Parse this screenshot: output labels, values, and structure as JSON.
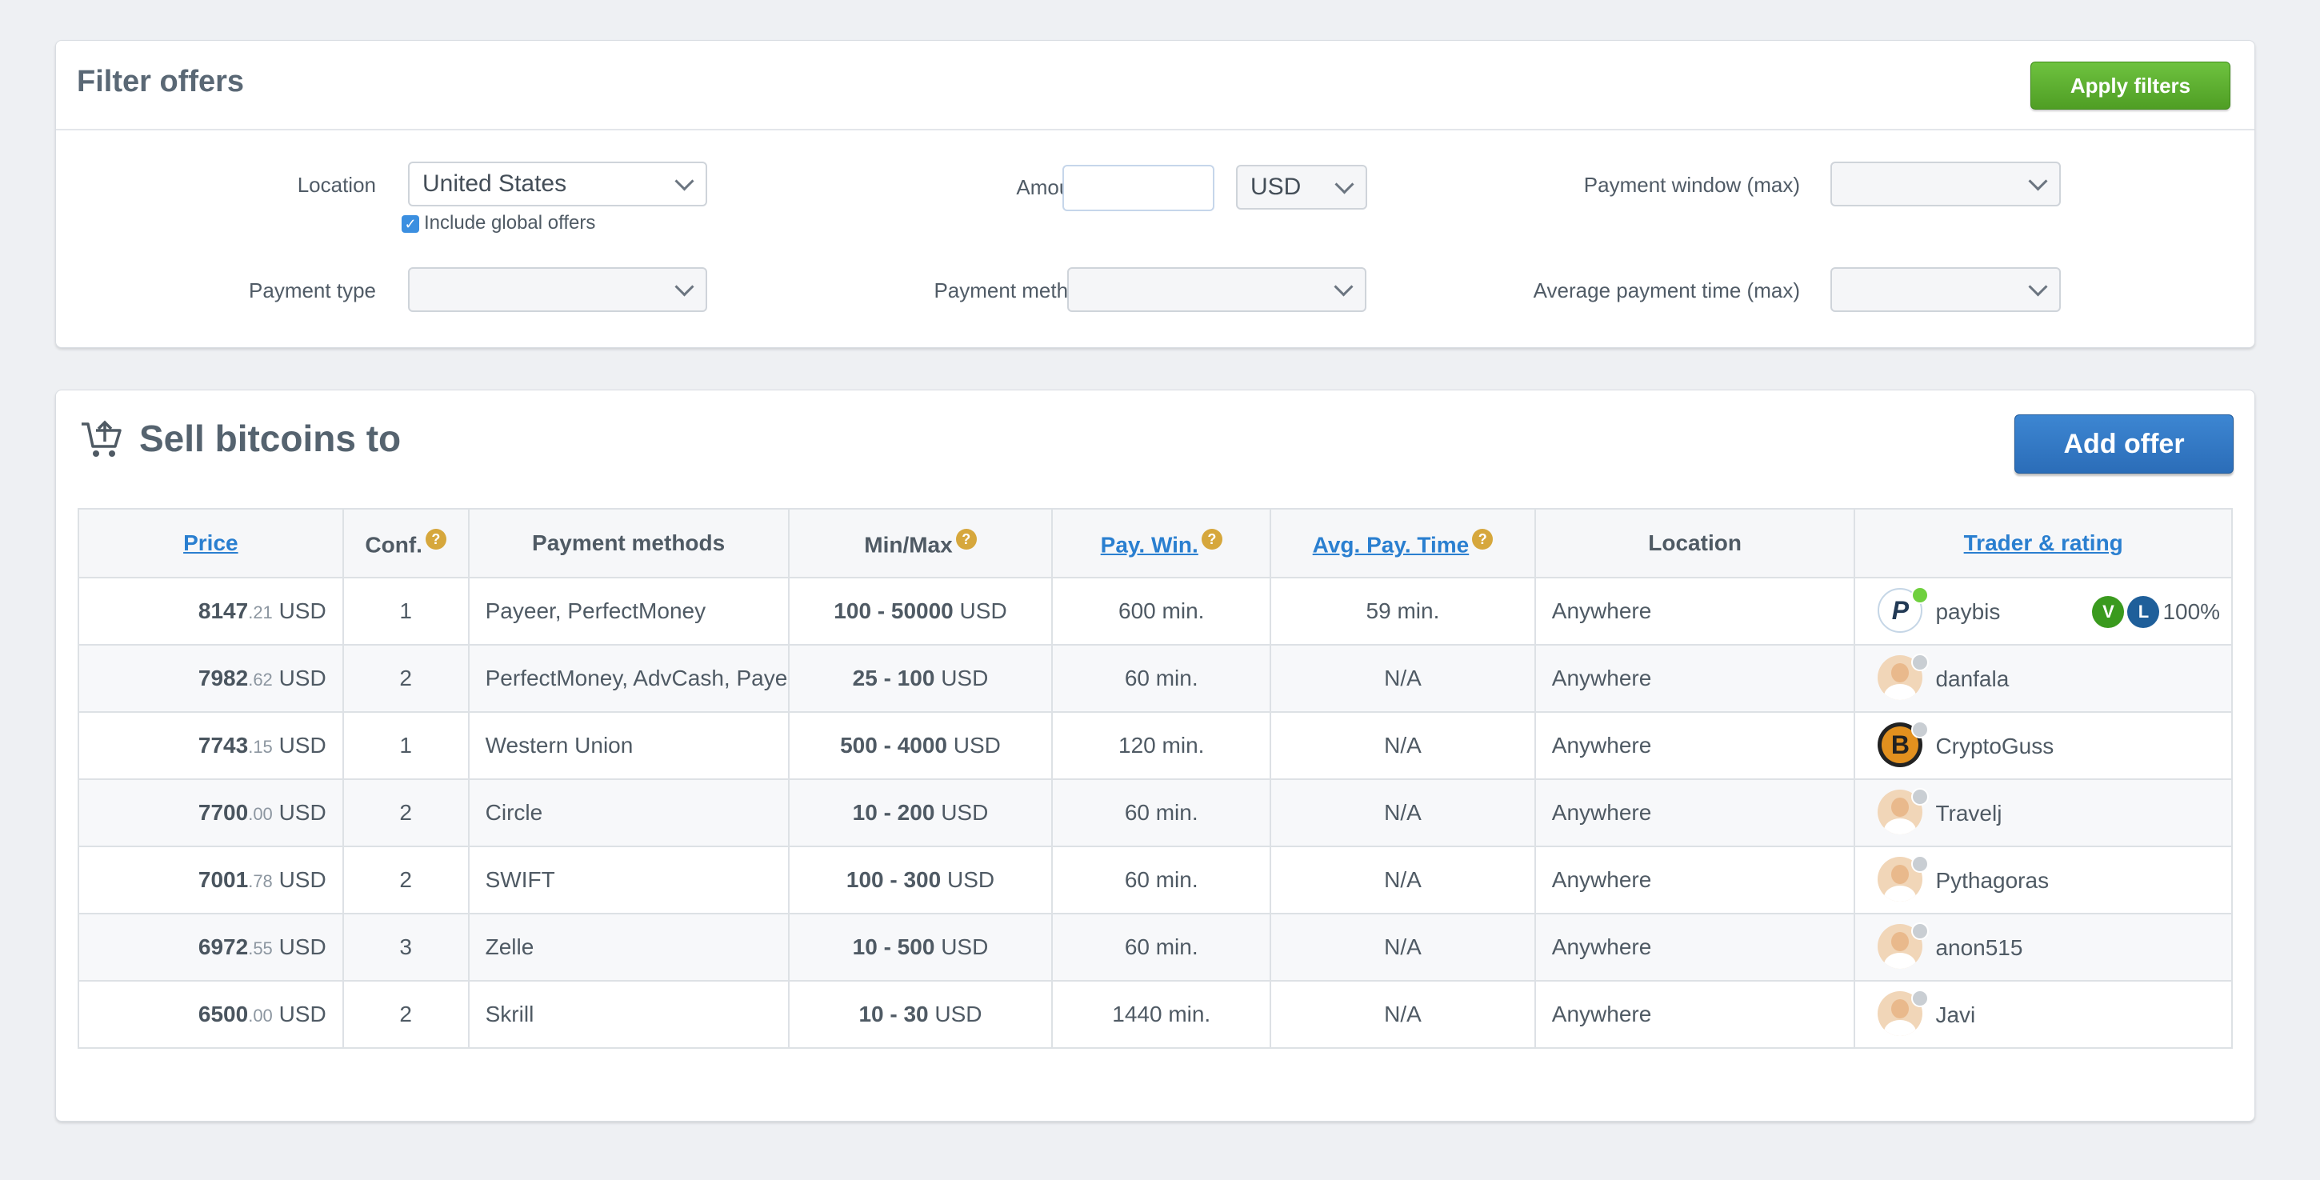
{
  "filter": {
    "title": "Filter offers",
    "apply_label": "Apply filters",
    "location_label": "Location",
    "location_value": "United States",
    "include_global_label": "Include global offers",
    "amount_label": "Amount",
    "amount_value": "",
    "currency_value": "USD",
    "payment_window_label": "Payment window (max)",
    "payment_type_label": "Payment type",
    "payment_method_label": "Payment method",
    "avg_payment_time_label": "Average payment time (max)"
  },
  "sell": {
    "title": "Sell bitcoins to",
    "add_offer_label": "Add offer",
    "columns": {
      "price": "Price",
      "conf": "Conf.",
      "payment_methods": "Payment methods",
      "minmax": "Min/Max",
      "pay_win": "Pay. Win.",
      "avg_pay_time": "Avg. Pay. Time",
      "location": "Location",
      "trader": "Trader & rating"
    },
    "help_glyph": "?",
    "rows": [
      {
        "price_int": "8147",
        "price_dec": ".21",
        "cur": "USD",
        "conf": "1",
        "methods": "Payeer, PerfectMoney",
        "range": "100 - 50000",
        "range_cur": "USD",
        "pay_win": "600 min.",
        "avg": "59 min.",
        "location": "Anywhere",
        "trader": "paybis",
        "avatar": "P",
        "rating": "100%",
        "badge_v": "V",
        "badge_l": "L"
      },
      {
        "price_int": "7982",
        "price_dec": ".62",
        "cur": "USD",
        "conf": "2",
        "methods": "PerfectMoney, AdvCash, Payeer",
        "range": "25 - 100",
        "range_cur": "USD",
        "pay_win": "60 min.",
        "avg": "N/A",
        "location": "Anywhere",
        "trader": "danfala"
      },
      {
        "price_int": "7743",
        "price_dec": ".15",
        "cur": "USD",
        "conf": "1",
        "methods": "Western Union",
        "range": "500 - 4000",
        "range_cur": "USD",
        "pay_win": "120 min.",
        "avg": "N/A",
        "location": "Anywhere",
        "trader": "CryptoGuss",
        "avatar": "B"
      },
      {
        "price_int": "7700",
        "price_dec": ".00",
        "cur": "USD",
        "conf": "2",
        "methods": "Circle",
        "range": "10 - 200",
        "range_cur": "USD",
        "pay_win": "60 min.",
        "avg": "N/A",
        "location": "Anywhere",
        "trader": "Travelj"
      },
      {
        "price_int": "7001",
        "price_dec": ".78",
        "cur": "USD",
        "conf": "2",
        "methods": "SWIFT",
        "range": "100 - 300",
        "range_cur": "USD",
        "pay_win": "60 min.",
        "avg": "N/A",
        "location": "Anywhere",
        "trader": "Pythagoras"
      },
      {
        "price_int": "6972",
        "price_dec": ".55",
        "cur": "USD",
        "conf": "3",
        "methods": "Zelle",
        "range": "10 - 500",
        "range_cur": "USD",
        "pay_win": "60 min.",
        "avg": "N/A",
        "location": "Anywhere",
        "trader": "anon515"
      },
      {
        "price_int": "6500",
        "price_dec": ".00",
        "cur": "USD",
        "conf": "2",
        "methods": "Skrill",
        "range": "10 - 30",
        "range_cur": "USD",
        "pay_win": "1440 min.",
        "avg": "N/A",
        "location": "Anywhere",
        "trader": "Javi"
      }
    ]
  },
  "colors": {
    "green": "#5cb030",
    "blue": "#2f78c4",
    "link": "#2a7fd0",
    "help": "#d6a73c",
    "online": "#6fd03e",
    "badge_v": "#3a9a1e",
    "badge_l": "#1f5f9a"
  },
  "icons": [
    "shopping-cart-upload-icon",
    "chevron-down-icon",
    "help-icon",
    "checkbox-icon"
  ]
}
